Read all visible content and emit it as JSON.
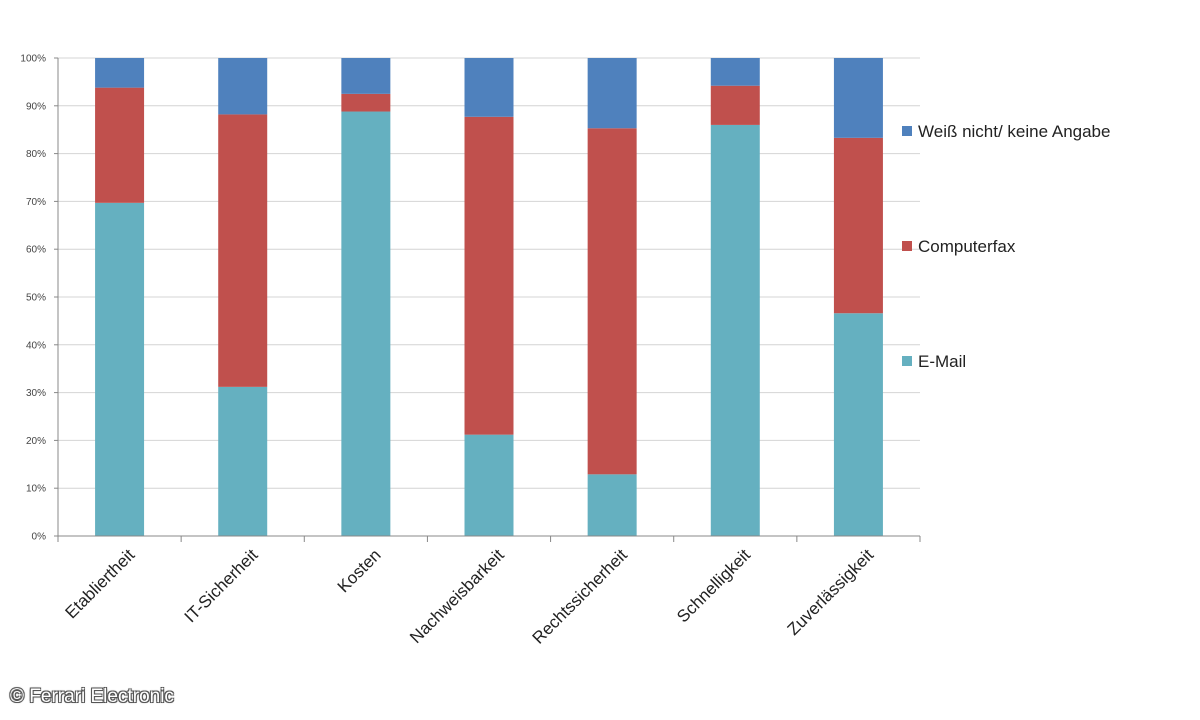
{
  "chart_data": {
    "type": "bar",
    "stacked": true,
    "categories": [
      "Etabliertheit",
      "IT-Sicherheit",
      "Kosten",
      "Nachweisbarkeit",
      "Rechtssicherheit",
      "Schnelligkeit",
      "Zuverlässigkeit"
    ],
    "series": [
      {
        "name": "E-Mail",
        "color": "#65b0c0",
        "values": [
          69.7,
          31.2,
          88.8,
          21.2,
          12.9,
          86.0,
          46.6
        ]
      },
      {
        "name": "Computerfax",
        "color": "#c0504d",
        "values": [
          24.1,
          57.0,
          3.7,
          66.5,
          72.4,
          8.2,
          36.7
        ]
      },
      {
        "name": "Weiß nicht/ keine Angabe",
        "color": "#4f81bd",
        "values": [
          6.2,
          11.8,
          7.5,
          12.3,
          14.7,
          5.8,
          16.7
        ]
      }
    ],
    "ylim": [
      0,
      100
    ],
    "yticks": [
      "0%",
      "10%",
      "20%",
      "30%",
      "40%",
      "50%",
      "60%",
      "70%",
      "80%",
      "90%",
      "100%"
    ],
    "grid": true,
    "legend_position": "right"
  },
  "legend": [
    {
      "label": "Weiß nicht/ keine Angabe",
      "color": "#4f81bd"
    },
    {
      "label": "Computerfax",
      "color": "#c0504d"
    },
    {
      "label": "E-Mail",
      "color": "#65b0c0"
    }
  ],
  "copyright": "© Ferrari Electronic"
}
